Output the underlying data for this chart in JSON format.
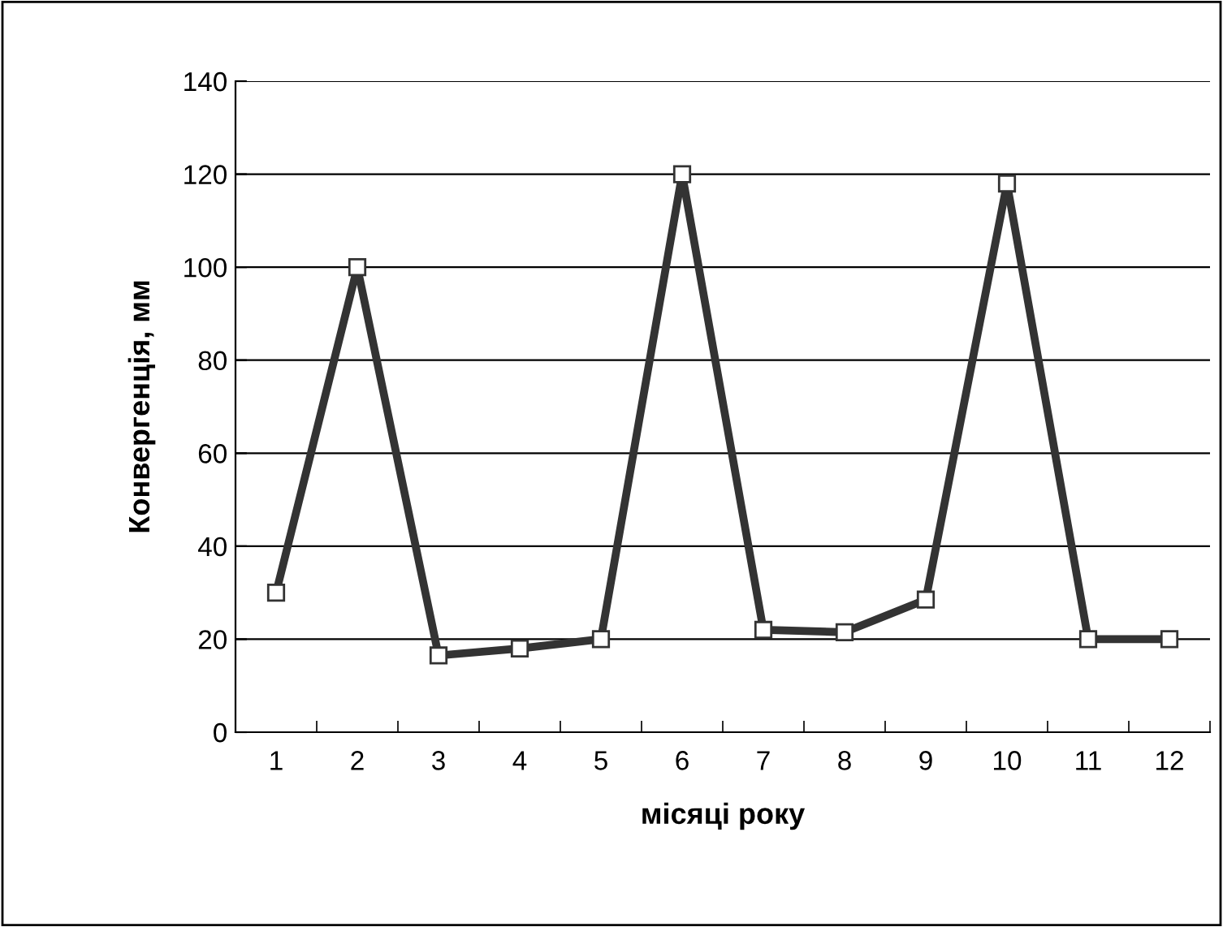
{
  "chart_data": {
    "type": "line",
    "xlabel": "місяці року",
    "ylabel": "Конвергенція, мм",
    "categories": [
      "1",
      "2",
      "3",
      "4",
      "5",
      "6",
      "7",
      "8",
      "9",
      "10",
      "11",
      "12"
    ],
    "series": [
      {
        "color": "#333333",
        "values": [
          30,
          100,
          16.5,
          18,
          20,
          120,
          22,
          21.5,
          28.5,
          118,
          20,
          20
        ]
      }
    ],
    "ylim": [
      0,
      140
    ],
    "yticks": [
      0,
      20,
      40,
      60,
      80,
      100,
      120,
      140
    ],
    "grid": "y",
    "marker": "square",
    "line_style": "solid",
    "legend": false
  }
}
